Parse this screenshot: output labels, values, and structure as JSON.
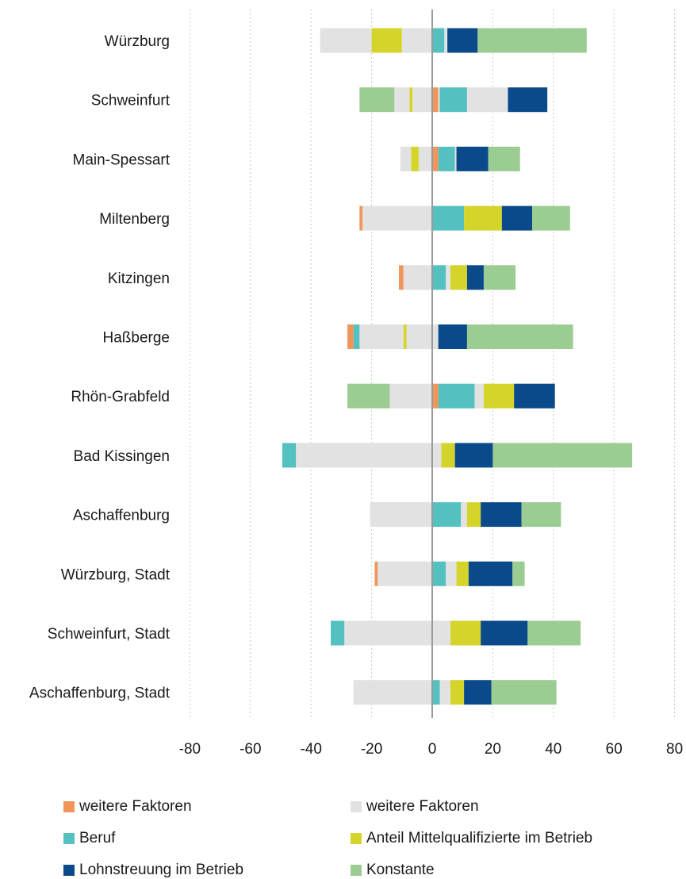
{
  "chart_data": {
    "type": "bar",
    "orientation": "horizontal",
    "stacked": true,
    "categories": [
      "Würzburg",
      "Schweinfurt",
      "Main-Spessart",
      "Miltenberg",
      "Kitzingen",
      "Haßberge",
      "Rhön-Grabfeld",
      "Bad Kissingen",
      "Aschaffenburg",
      "Würzburg, Stadt",
      "Schweinfurt, Stadt",
      "Aschaffenburg, Stadt"
    ],
    "xlim": [
      -80,
      80
    ],
    "xticks": [
      -80,
      -60,
      -40,
      -20,
      0,
      20,
      40,
      60,
      80
    ],
    "xtick_labels": [
      "-80",
      "-60",
      "-40",
      "-20",
      "0",
      "20",
      "40",
      "60",
      "80"
    ],
    "grid": "vertical-dotted",
    "legend_position": "bottom",
    "negative_series": [
      {
        "name": "weitere Faktoren",
        "color": "#e2e2e2",
        "values": [
          -10,
          -6.5,
          -4.5,
          -23,
          -8,
          -8.5,
          -1,
          -45,
          -20.5,
          -17,
          -29,
          -26
        ]
      },
      {
        "name": "Anteil Mittelqualifizierte im Betrieb",
        "color": "#d4d42a",
        "values": [
          -10,
          -1,
          -2.5,
          0,
          0,
          -1,
          0,
          0,
          0,
          0,
          0,
          0
        ]
      },
      {
        "name": "weitere Faktoren",
        "color": "#e2e2e2",
        "values": [
          -17,
          -5,
          -3.5,
          0,
          -1.5,
          -14.5,
          -13,
          0,
          0,
          -1,
          0,
          0
        ]
      },
      {
        "name": "Konstante",
        "color": "#9bcc91",
        "values": [
          0,
          -11.5,
          0,
          0,
          0,
          0,
          -14,
          0,
          0,
          0,
          0,
          0
        ]
      },
      {
        "name": "Beruf",
        "color": "#55c0c0",
        "values": [
          0,
          0,
          0,
          0,
          0,
          -2,
          0,
          -4.5,
          0,
          0,
          -4.5,
          0
        ]
      },
      {
        "name": "weitere Faktoren",
        "color": "#f0965a",
        "values": [
          0,
          0,
          0,
          -1,
          -1.5,
          -2,
          0,
          0,
          0,
          -1,
          0,
          0
        ]
      }
    ],
    "positive_series": [
      {
        "name": "weitere Faktoren",
        "color": "#f0965a",
        "values": [
          0,
          2,
          2,
          0,
          0,
          0,
          2,
          0,
          0,
          0,
          0,
          0
        ]
      },
      {
        "name": "weitere Faktoren",
        "color": "#e2e2e2",
        "values": [
          0,
          0.5,
          0,
          0,
          0,
          0,
          0,
          0,
          0,
          0,
          6,
          0
        ]
      },
      {
        "name": "Beruf",
        "color": "#55c0c0",
        "values": [
          4,
          9,
          5.5,
          10.5,
          4.5,
          0,
          12,
          0,
          9.5,
          4.5,
          0,
          2.5
        ]
      },
      {
        "name": "weitere Faktoren",
        "color": "#e2e2e2",
        "values": [
          1,
          13.5,
          0.5,
          0,
          1.5,
          2,
          3,
          3,
          2,
          3.5,
          0,
          3.5
        ]
      },
      {
        "name": "Anteil Mittelqualifizierte im Betrieb",
        "color": "#d4d42a",
        "values": [
          0,
          0,
          0,
          12.5,
          5.5,
          0,
          10,
          4.5,
          4.5,
          4,
          10,
          4.5
        ]
      },
      {
        "name": "Lohnstreuung im Betrieb",
        "color": "#0b4a8a",
        "values": [
          10,
          13,
          10.5,
          10,
          5.5,
          9.5,
          13.5,
          12.5,
          13.5,
          14.5,
          15.5,
          9
        ]
      },
      {
        "name": "Konstante",
        "color": "#9bcc91",
        "values": [
          36,
          0,
          10.5,
          12.5,
          10.5,
          35,
          0,
          46,
          13,
          4,
          17.5,
          21.5
        ]
      }
    ],
    "legend": [
      {
        "label": "weitere Faktoren",
        "color": "#f0965a"
      },
      {
        "label": "weitere Faktoren",
        "color": "#e2e2e2"
      },
      {
        "label": "Beruf",
        "color": "#55c0c0"
      },
      {
        "label": "Anteil Mittelqualifizierte im Betrieb",
        "color": "#d4d42a"
      },
      {
        "label": "Lohnstreuung im Betrieb",
        "color": "#0b4a8a"
      },
      {
        "label": "Konstante",
        "color": "#9bcc91"
      }
    ]
  }
}
